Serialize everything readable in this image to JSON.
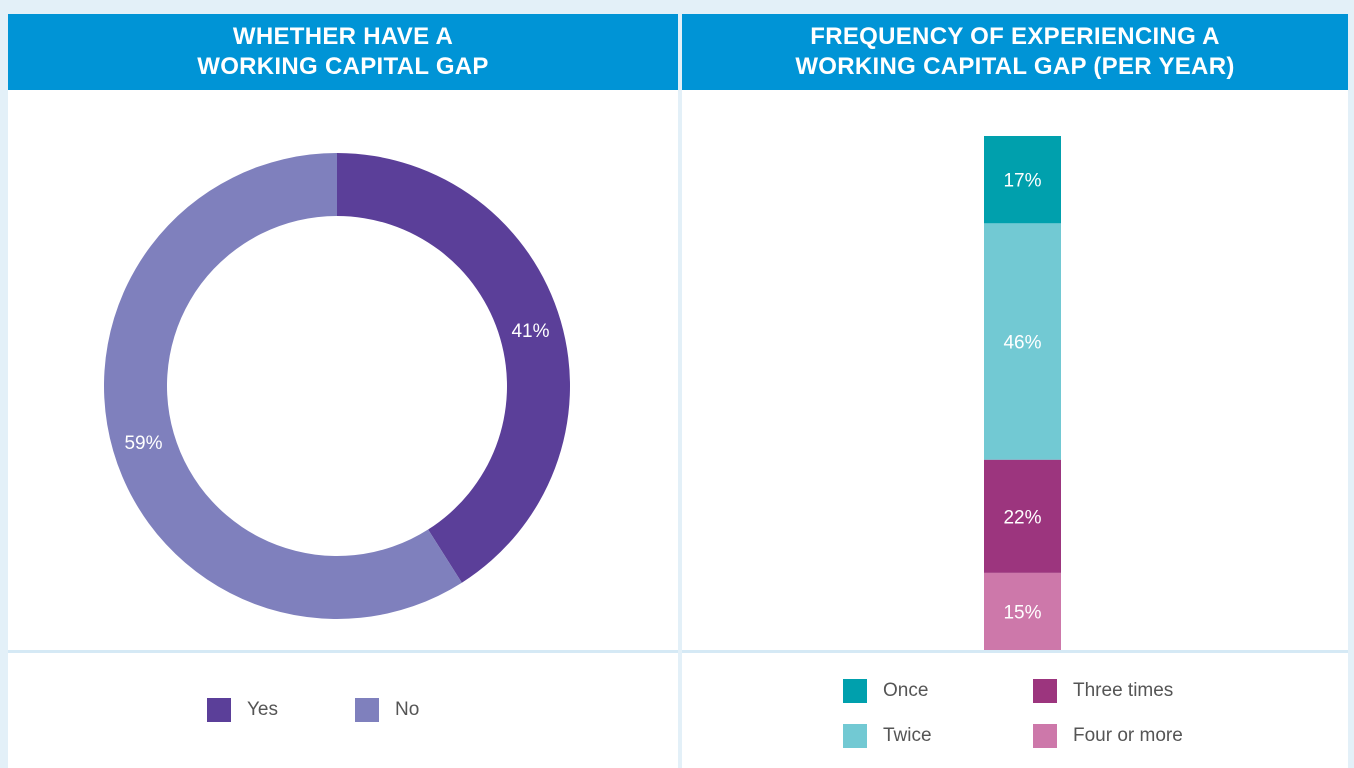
{
  "left": {
    "header_line1": "WHETHER HAVE A",
    "header_line2": "WORKING CAPITAL GAP",
    "legend": [
      {
        "label": "Yes",
        "color": "#5b3f99"
      },
      {
        "label": "No",
        "color": "#7f80bd"
      }
    ]
  },
  "right": {
    "header_line1": "FREQUENCY OF EXPERIENCING A",
    "header_line2": "WORKING CAPITAL GAP (PER YEAR)",
    "legend": [
      {
        "label": "Once",
        "color": "#00a0ad"
      },
      {
        "label": "Three times",
        "color": "#9c357e"
      },
      {
        "label": "Twice",
        "color": "#72c9d3"
      },
      {
        "label": "Four or more",
        "color": "#cd78aa"
      }
    ]
  },
  "chart_data": [
    {
      "type": "pie",
      "title": "WHETHER HAVE A WORKING CAPITAL GAP",
      "donut": true,
      "categories": [
        "Yes",
        "No"
      ],
      "values": [
        41,
        59
      ],
      "labels": [
        "41%",
        "59%"
      ],
      "colors": [
        "#5b3f99",
        "#7f80bd"
      ],
      "legend": "bottom"
    },
    {
      "type": "bar",
      "stacked": true,
      "title": "FREQUENCY OF EXPERIENCING A WORKING CAPITAL GAP (PER YEAR)",
      "series": [
        {
          "name": "Once",
          "values": [
            17
          ],
          "label": "17%",
          "color": "#00a0ad"
        },
        {
          "name": "Twice",
          "values": [
            46
          ],
          "label": "46%",
          "color": "#72c9d3"
        },
        {
          "name": "Three times",
          "values": [
            22
          ],
          "label": "22%",
          "color": "#9c357e"
        },
        {
          "name": "Four or more",
          "values": [
            15
          ],
          "label": "15%",
          "color": "#cd78aa"
        }
      ],
      "ylim": [
        0,
        100
      ],
      "legend": "bottom"
    }
  ]
}
